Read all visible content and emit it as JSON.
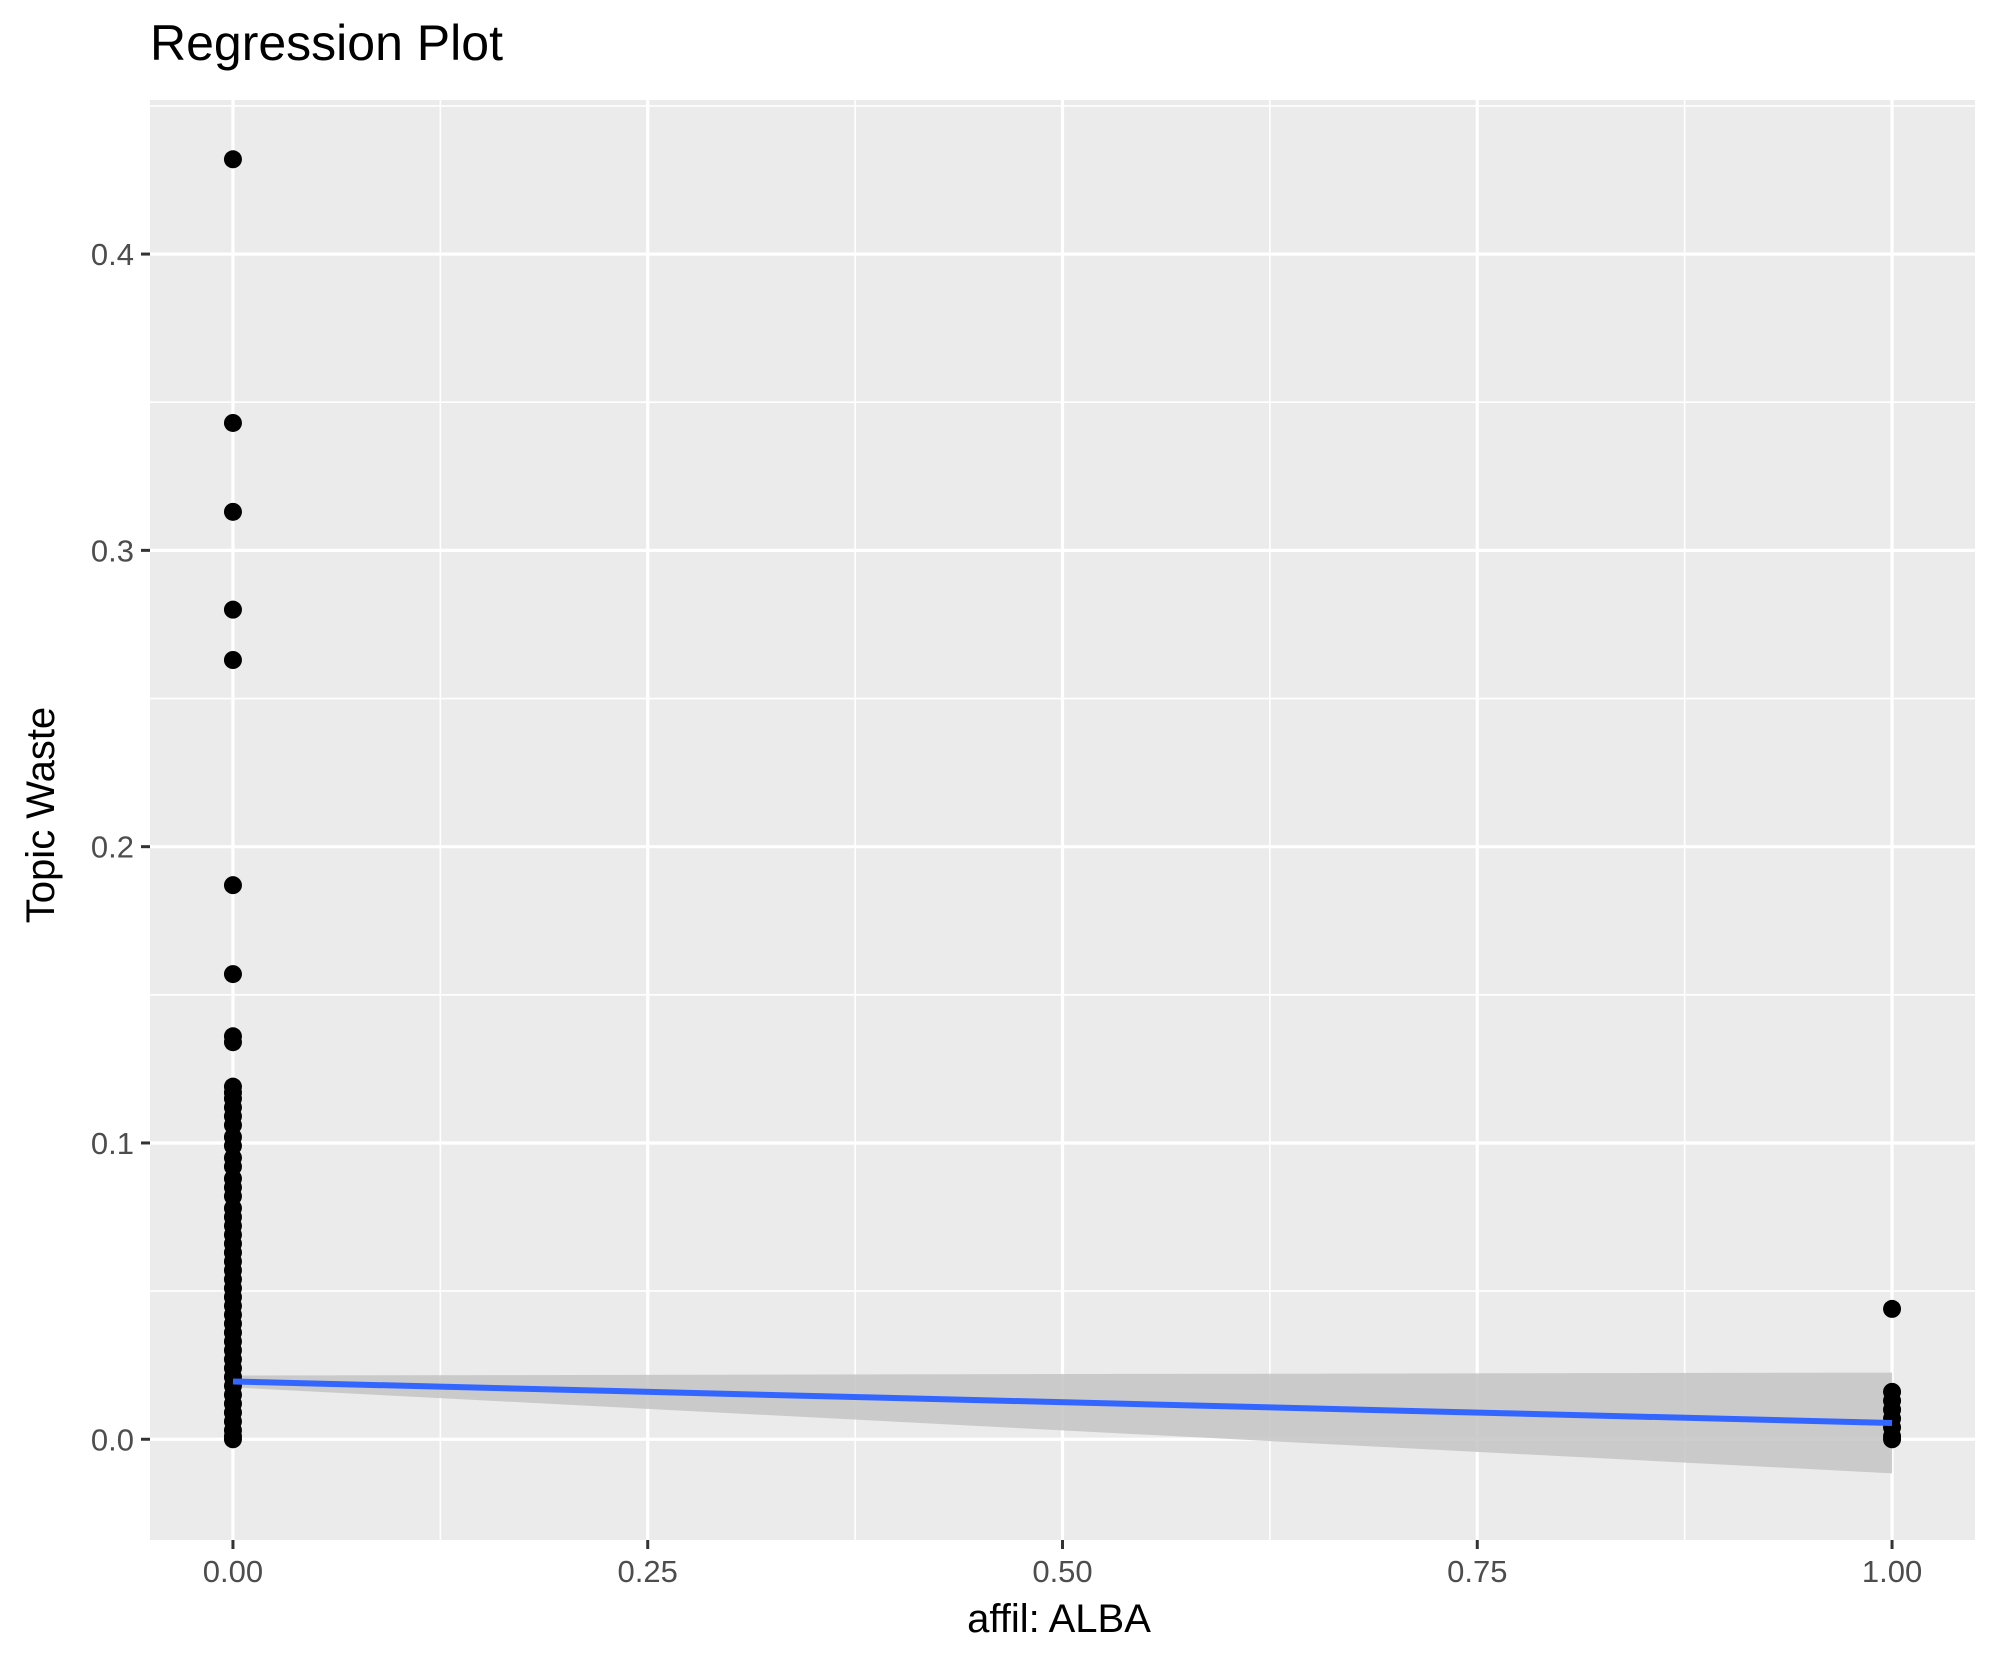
{
  "chart_data": {
    "type": "scatter",
    "title": "Regression Plot",
    "xlabel": "affil: ALBA",
    "ylabel": "Topic Waste",
    "xlim": [
      -0.05,
      1.05
    ],
    "ylim": [
      -0.034,
      0.452
    ],
    "x_ticks": [
      0,
      0.25,
      0.5,
      0.75,
      1
    ],
    "x_tick_labels": [
      "0.00",
      "0.25",
      "0.50",
      "0.75",
      "1.00"
    ],
    "y_ticks": [
      0,
      0.1,
      0.2,
      0.3,
      0.4
    ],
    "y_tick_labels": [
      "0.0",
      "0.1",
      "0.2",
      "0.3",
      "0.4"
    ],
    "grid": true,
    "legend": "none",
    "colors": {
      "panel": "#ebebeb",
      "grid": "#ffffff",
      "points": "#000000",
      "fit_line": "#3366ff",
      "confidence_band": "#c4c4c4"
    },
    "series": [
      {
        "x": 0,
        "y": [
          0.432,
          0.343,
          0.313,
          0.28,
          0.263,
          0.187,
          0.157,
          0.136,
          0.134,
          0.119,
          0.117,
          0.115,
          0.112,
          0.109,
          0.106,
          0.102,
          0.099,
          0.095,
          0.092,
          0.088,
          0.085,
          0.082,
          0.078,
          0.075,
          0.072,
          0.069,
          0.066,
          0.063,
          0.06,
          0.057,
          0.054,
          0.051,
          0.048,
          0.045,
          0.042,
          0.039,
          0.036,
          0.033,
          0.03,
          0.027,
          0.024,
          0.021,
          0.018,
          0.015,
          0.012,
          0.009,
          0.006,
          0.003,
          0.001,
          0.0
        ]
      },
      {
        "x": 1,
        "y": [
          0.044,
          0.016,
          0.013,
          0.01,
          0.007,
          0.004,
          0.001,
          0.0
        ]
      }
    ],
    "regression": {
      "x": [
        0,
        1
      ],
      "y": [
        0.0195,
        0.0055
      ],
      "ci_lower": [
        0.0175,
        -0.0115
      ],
      "ci_upper": [
        0.0215,
        0.0225
      ]
    }
  }
}
